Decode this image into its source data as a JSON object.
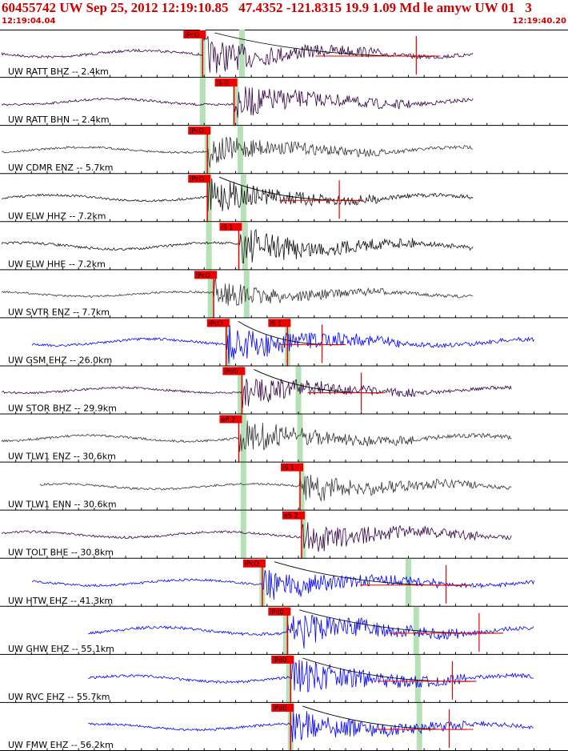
{
  "header": {
    "title": "60455742 UW Sep 25, 2012 12:19:10.85   47.4352 -121.8315 19.9 1.09 Md le amyw UW 01   3",
    "start_time": "12:19:04.04",
    "end_time": "12:19:40.20"
  },
  "colors": {
    "title": "#cc0000",
    "pick_box": "#ee0000",
    "trace_black": "#111111",
    "trace_purple": "#330044",
    "trace_gray": "#333333",
    "trace_blue": "#0000ff",
    "window": "#b6e0b6",
    "gridline": "#000000",
    "tick": "#000000"
  },
  "chart_data": {
    "type": "seismogram-record-section",
    "time_range": [
      "12:19:04.04",
      "12:19:40.20"
    ],
    "traces": [
      {
        "label": "UW RATT BHZ -- 2.4km",
        "color": "purple",
        "onset": 12.9,
        "amp": 0.55,
        "pick": {
          "label": "iPcO",
          "time": 12.9
        },
        "picks2": [],
        "windows": [
          12.9,
          15.4
        ],
        "coda": true,
        "redtick": 26.5
      },
      {
        "label": "UW RATT BHN -- 2.4km",
        "color": "purple",
        "onset": 14.9,
        "amp": 0.5,
        "pick": {
          "label": "iS 0",
          "time": 14.9
        },
        "picks2": [],
        "windows": [
          12.9,
          15.0
        ],
        "coda": false,
        "redtick": null
      },
      {
        "label": "UW CDMR ENZ -- 5.7km",
        "color": "gray",
        "onset": 13.2,
        "amp": 0.45,
        "pick": {
          "label": "iPcO",
          "time": 13.2
        },
        "picks2": [],
        "windows": [
          13.2,
          15.3
        ],
        "coda": false,
        "redtick": null
      },
      {
        "label": "UW ELW HHZ -- 7.2km",
        "color": "black",
        "onset": 13.2,
        "amp": 0.5,
        "pick": {
          "label": "iPcO",
          "time": 13.2
        },
        "picks2": [],
        "windows": [
          13.3,
          15.5
        ],
        "coda": true,
        "redtick": 21.6
      },
      {
        "label": "UW ELW HHE -- 7.2km",
        "color": "black",
        "onset": 15.2,
        "amp": 0.55,
        "pick": {
          "label": "iS 1",
          "time": 15.2
        },
        "picks2": [],
        "windows": [
          13.3,
          15.6
        ],
        "coda": false,
        "redtick": null
      },
      {
        "label": "UW SVTR ENZ -- 7.7km",
        "color": "gray",
        "onset": 13.6,
        "amp": 0.4,
        "pick": {
          "label": "iPcO",
          "time": 13.6
        },
        "picks2": [],
        "windows": [
          13.4,
          15.7
        ],
        "coda": false,
        "redtick": null
      },
      {
        "label": "UW GSM EHZ -- 26.0km",
        "color": "blue",
        "onset": 14.4,
        "amp": 0.55,
        "pick": {
          "label": "iPcO",
          "time": 14.4
        },
        "picks2": [
          {
            "label": "iS 1",
            "time": 18.3
          }
        ],
        "windows": [
          14.5,
          18.3
        ],
        "coda": true,
        "redtick": 20.5
      },
      {
        "label": "UW STOR BHZ -- 29.9km",
        "color": "purple",
        "onset": 15.4,
        "amp": 0.45,
        "pick": {
          "label": "iPd0",
          "time": 15.4
        },
        "picks2": [],
        "windows": [
          15.3,
          19.0
        ],
        "coda": true,
        "redtick": 23.0
      },
      {
        "label": "UW TLW1 ENZ -- 30.6km",
        "color": "gray",
        "onset": 15.2,
        "amp": 0.5,
        "pick": {
          "label": "eP 2",
          "time": 15.2
        },
        "picks2": [],
        "windows": [
          15.5,
          19.1
        ],
        "coda": false,
        "redtick": null
      },
      {
        "label": "UW TLW1 ENN -- 30.6km",
        "color": "gray",
        "onset": 19.1,
        "amp": 0.45,
        "pick": {
          "label": "iS 1",
          "time": 19.1
        },
        "picks2": [],
        "windows": [
          15.5,
          19.2
        ],
        "coda": false,
        "redtick": null
      },
      {
        "label": "UW TOLT BHE -- 30.8km",
        "color": "purple",
        "onset": 19.2,
        "amp": 0.5,
        "pick": {
          "label": "eS 2",
          "time": 19.2
        },
        "picks2": [],
        "windows": [
          15.5,
          19.3
        ],
        "coda": false,
        "redtick": null
      },
      {
        "label": "UW HTW EHZ -- 41.3km",
        "color": "blue",
        "onset": 16.7,
        "amp": 0.5,
        "pick": {
          "label": "iPcO",
          "time": 16.7
        },
        "picks2": [],
        "windows": [
          16.7,
          26.0
        ],
        "coda": true,
        "redtick": 28.4
      },
      {
        "label": "UW GHW EHZ -- 55.1km",
        "color": "blue",
        "onset": 18.3,
        "amp": 0.6,
        "pick": {
          "label": "iPd0",
          "time": 18.3
        },
        "picks2": [],
        "windows": [
          18.2,
          26.5
        ],
        "coda": true,
        "redtick": 30.5
      },
      {
        "label": "UW RVC EHZ -- 55.7km",
        "color": "blue",
        "onset": 18.5,
        "amp": 0.55,
        "pick": {
          "label": "iPd0",
          "time": 18.5
        },
        "picks2": [],
        "windows": [
          18.4,
          26.6
        ],
        "coda": true,
        "redtick": 28.8
      },
      {
        "label": "UW FMW EHZ -- 56.2km",
        "color": "blue",
        "onset": 18.5,
        "amp": 0.5,
        "pick": {
          "label": "iPd0",
          "time": 18.5
        },
        "picks2": [],
        "windows": [
          18.5,
          26.7
        ],
        "coda": true,
        "redtick": 28.6
      }
    ]
  }
}
